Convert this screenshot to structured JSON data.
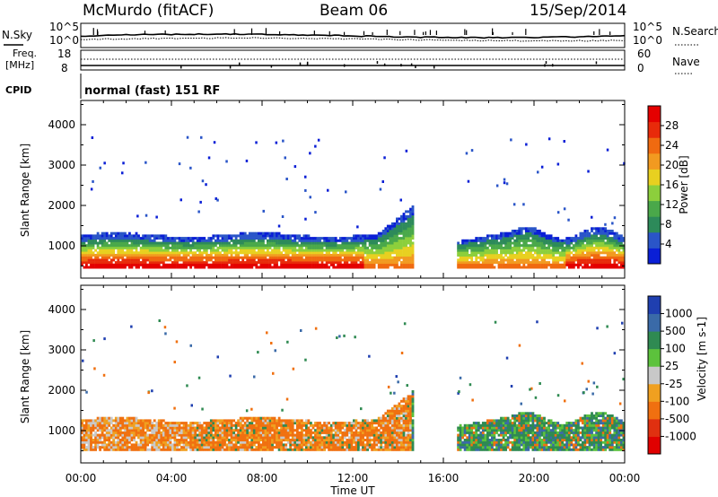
{
  "header": {
    "station": "McMurdo (fitACF)",
    "beam": "Beam 06",
    "date": "15/Sep/2014"
  },
  "strip_panels": {
    "nsky_label": "N.Sky",
    "nsearch_label": "N.Search",
    "freq_label_line1": "Freq.",
    "freq_label_line2": "[MHz]",
    "nave_label": "Nave",
    "cpid_label": "CPID",
    "cpid_value": "normal (fast) 151 RF",
    "noise_ticks": [
      "10^5",
      "10^0"
    ],
    "freq_ticks": [
      "18",
      "8"
    ],
    "nave_ticks": [
      "60",
      "0"
    ]
  },
  "chart_data": [
    {
      "type": "heatmap",
      "quantity": "Power",
      "ylabel": "Slant Range [km]",
      "xlabel": "Time UT",
      "x_ticks": [
        "00:00",
        "04:00",
        "08:00",
        "12:00",
        "16:00",
        "20:00",
        "00:00"
      ],
      "y_ticks": [
        1000,
        2000,
        3000,
        4000
      ],
      "ylim": [
        200,
        4600
      ],
      "xlim_hours": [
        0,
        24
      ],
      "colorbar": {
        "label": "Power [dB]",
        "ticks": [
          4,
          8,
          12,
          16,
          20,
          24,
          28
        ],
        "range": [
          0,
          32
        ],
        "colors": [
          "#0a1fd6",
          "#2a55c8",
          "#2d8a5a",
          "#4aa84a",
          "#8ccf3c",
          "#e8d020",
          "#f29a20",
          "#f06a10",
          "#e82a0a",
          "#e40000"
        ]
      }
    },
    {
      "type": "heatmap",
      "quantity": "Velocity",
      "ylabel": "Slant Range [km]",
      "xlabel": "Time UT",
      "x_ticks": [
        "00:00",
        "04:00",
        "08:00",
        "12:00",
        "16:00",
        "20:00",
        "00:00"
      ],
      "y_ticks": [
        1000,
        2000,
        3000,
        4000
      ],
      "ylim": [
        200,
        4600
      ],
      "xlim_hours": [
        0,
        24
      ],
      "colorbar": {
        "label": "Velocity [m s-1]",
        "ticks": [
          1000,
          500,
          100,
          25,
          -25,
          -100,
          -500,
          -1000
        ],
        "colors": [
          "#1f3fb0",
          "#3a6aa8",
          "#2f8a52",
          "#5cc23c",
          "#c8c8c8",
          "#f0a020",
          "#f07010",
          "#e03010",
          "#e00000"
        ]
      }
    }
  ]
}
